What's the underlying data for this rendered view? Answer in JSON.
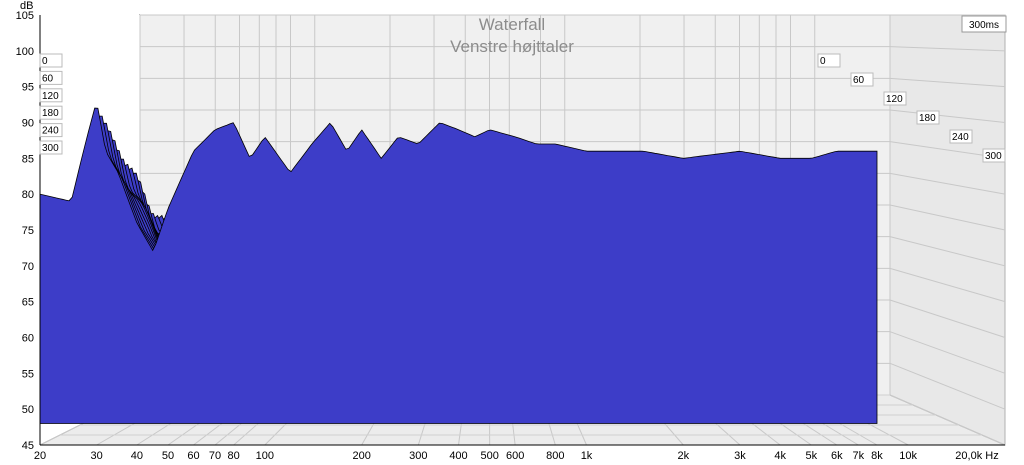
{
  "chart_data": {
    "type": "area",
    "subtype": "waterfall-3d",
    "title": "Waterfall",
    "subtitle": "Venstre højttaler",
    "xlabel": "Hz",
    "ylabel": "dB",
    "zlabel": "ms",
    "xscale": "log",
    "xlim": [
      20,
      20000
    ],
    "ylim": [
      45,
      105
    ],
    "zlim": [
      0,
      300
    ],
    "x_ticks": [
      {
        "value": 20,
        "label": "20"
      },
      {
        "value": 30,
        "label": "30"
      },
      {
        "value": 40,
        "label": "40"
      },
      {
        "value": 50,
        "label": "50"
      },
      {
        "value": 60,
        "label": "60"
      },
      {
        "value": 70,
        "label": "70"
      },
      {
        "value": 80,
        "label": "80"
      },
      {
        "value": 100,
        "label": "100"
      },
      {
        "value": 200,
        "label": "200"
      },
      {
        "value": 300,
        "label": "300"
      },
      {
        "value": 400,
        "label": "400"
      },
      {
        "value": 500,
        "label": "500"
      },
      {
        "value": 600,
        "label": "600"
      },
      {
        "value": 800,
        "label": "800"
      },
      {
        "value": 1000,
        "label": "1k"
      },
      {
        "value": 2000,
        "label": "2k"
      },
      {
        "value": 3000,
        "label": "3k"
      },
      {
        "value": 4000,
        "label": "4k"
      },
      {
        "value": 5000,
        "label": "5k"
      },
      {
        "value": 6000,
        "label": "6k"
      },
      {
        "value": 7000,
        "label": "7k"
      },
      {
        "value": 8000,
        "label": "8k"
      },
      {
        "value": 10000,
        "label": "10k"
      },
      {
        "value": 20000,
        "label": "20,0k Hz"
      }
    ],
    "y_ticks": [
      {
        "value": 45,
        "label": "45"
      },
      {
        "value": 50,
        "label": "50"
      },
      {
        "value": 55,
        "label": "55"
      },
      {
        "value": 60,
        "label": "60"
      },
      {
        "value": 65,
        "label": "65"
      },
      {
        "value": 70,
        "label": "70"
      },
      {
        "value": 75,
        "label": "75"
      },
      {
        "value": 80,
        "label": "80"
      },
      {
        "value": 85,
        "label": "85"
      },
      {
        "value": 90,
        "label": "90"
      },
      {
        "value": 95,
        "label": "95"
      },
      {
        "value": 100,
        "label": "100"
      },
      {
        "value": 105,
        "label": "105"
      }
    ],
    "time_ticks": [
      {
        "value": 0,
        "label": "0"
      },
      {
        "value": 60,
        "label": "60"
      },
      {
        "value": 120,
        "label": "120"
      },
      {
        "value": 180,
        "label": "180"
      },
      {
        "value": 240,
        "label": "240"
      },
      {
        "value": 300,
        "label": "300"
      }
    ],
    "time_window_label": "300ms",
    "slices": 20,
    "fill_color": "#3d3dc8",
    "edge_color": "#000000",
    "frequency_response_at_0ms": {
      "freq_hz": [
        20,
        25,
        28,
        30,
        32,
        35,
        40,
        45,
        50,
        60,
        70,
        80,
        90,
        100,
        120,
        140,
        160,
        180,
        200,
        230,
        260,
        300,
        350,
        400,
        450,
        500,
        600,
        700,
        800,
        1000,
        1500,
        2000,
        3000,
        4000,
        5000,
        6000,
        7000,
        8000
      ],
      "db": [
        80,
        79,
        88,
        93,
        86,
        83,
        76,
        72,
        78,
        86,
        89,
        90,
        85,
        88,
        83,
        87,
        90,
        86,
        89,
        85,
        88,
        87,
        90,
        89,
        88,
        89,
        88,
        87,
        87,
        86,
        86,
        85,
        86,
        85,
        85,
        86,
        86,
        86
      ]
    },
    "decay_floor_db": 52,
    "grid": true
  }
}
